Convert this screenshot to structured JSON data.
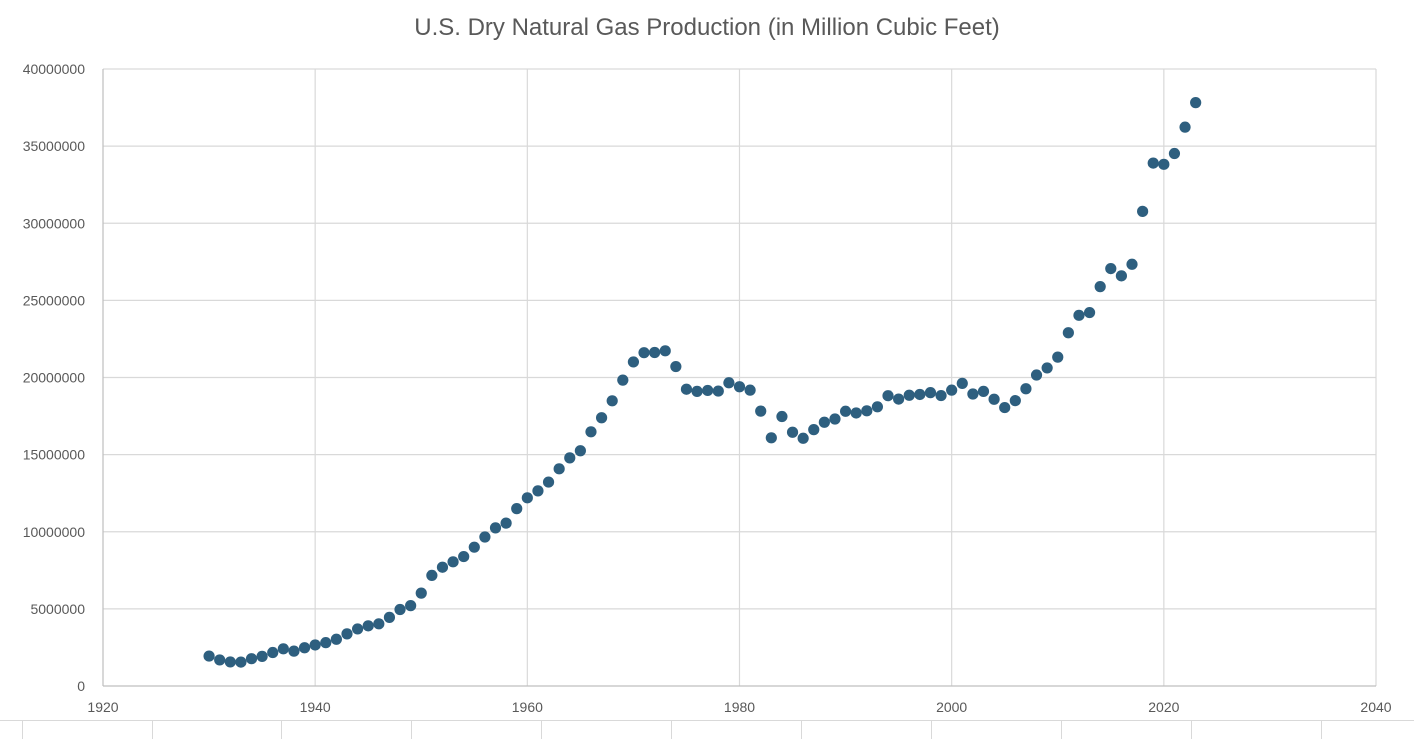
{
  "chart_data": {
    "type": "scatter",
    "title": "U.S. Dry Natural Gas Production (in Million Cubic Feet)",
    "xlabel": "",
    "ylabel": "",
    "xlim": [
      1920,
      2040
    ],
    "ylim": [
      0,
      40000000
    ],
    "x_ticks": [
      1920,
      1940,
      1960,
      1980,
      2000,
      2020,
      2040
    ],
    "y_ticks": [
      0,
      5000000,
      10000000,
      15000000,
      20000000,
      25000000,
      30000000,
      35000000,
      40000000
    ],
    "grid": true,
    "legend": false,
    "series": [
      {
        "color": "#2e5f7f",
        "points": [
          [
            1930,
            1940000
          ],
          [
            1931,
            1690000
          ],
          [
            1932,
            1560000
          ],
          [
            1933,
            1550000
          ],
          [
            1934,
            1770000
          ],
          [
            1935,
            1920000
          ],
          [
            1936,
            2170000
          ],
          [
            1937,
            2410000
          ],
          [
            1938,
            2260000
          ],
          [
            1939,
            2480000
          ],
          [
            1940,
            2660000
          ],
          [
            1941,
            2810000
          ],
          [
            1942,
            3030000
          ],
          [
            1943,
            3380000
          ],
          [
            1944,
            3700000
          ],
          [
            1945,
            3900000
          ],
          [
            1946,
            4030000
          ],
          [
            1947,
            4450000
          ],
          [
            1948,
            4960000
          ],
          [
            1949,
            5210000
          ],
          [
            1950,
            6020000
          ],
          [
            1951,
            7170000
          ],
          [
            1952,
            7700000
          ],
          [
            1953,
            8050000
          ],
          [
            1954,
            8390000
          ],
          [
            1955,
            9000000
          ],
          [
            1956,
            9660000
          ],
          [
            1957,
            10250000
          ],
          [
            1958,
            10560000
          ],
          [
            1959,
            11500000
          ],
          [
            1960,
            12200000
          ],
          [
            1961,
            12650000
          ],
          [
            1962,
            13220000
          ],
          [
            1963,
            14080000
          ],
          [
            1964,
            14790000
          ],
          [
            1965,
            15250000
          ],
          [
            1966,
            16480000
          ],
          [
            1967,
            17390000
          ],
          [
            1968,
            18490000
          ],
          [
            1969,
            19830000
          ],
          [
            1970,
            21010000
          ],
          [
            1971,
            21610000
          ],
          [
            1972,
            21620000
          ],
          [
            1973,
            21730000
          ],
          [
            1974,
            20710000
          ],
          [
            1975,
            19240000
          ],
          [
            1976,
            19100000
          ],
          [
            1977,
            19160000
          ],
          [
            1978,
            19120000
          ],
          [
            1979,
            19660000
          ],
          [
            1980,
            19400000
          ],
          [
            1981,
            19180000
          ],
          [
            1982,
            17820000
          ],
          [
            1983,
            16090000
          ],
          [
            1984,
            17470000
          ],
          [
            1985,
            16450000
          ],
          [
            1986,
            16060000
          ],
          [
            1987,
            16620000
          ],
          [
            1988,
            17100000
          ],
          [
            1989,
            17310000
          ],
          [
            1990,
            17810000
          ],
          [
            1991,
            17700000
          ],
          [
            1992,
            17840000
          ],
          [
            1993,
            18100000
          ],
          [
            1994,
            18820000
          ],
          [
            1995,
            18600000
          ],
          [
            1996,
            18850000
          ],
          [
            1997,
            18900000
          ],
          [
            1998,
            19020000
          ],
          [
            1999,
            18830000
          ],
          [
            2000,
            19180000
          ],
          [
            2001,
            19620000
          ],
          [
            2002,
            18930000
          ],
          [
            2003,
            19100000
          ],
          [
            2004,
            18590000
          ],
          [
            2005,
            18050000
          ],
          [
            2006,
            18500000
          ],
          [
            2007,
            19270000
          ],
          [
            2008,
            20160000
          ],
          [
            2009,
            20620000
          ],
          [
            2010,
            21320000
          ],
          [
            2011,
            22900000
          ],
          [
            2012,
            24030000
          ],
          [
            2013,
            24210000
          ],
          [
            2014,
            25890000
          ],
          [
            2015,
            27060000
          ],
          [
            2016,
            26590000
          ],
          [
            2017,
            27340000
          ],
          [
            2018,
            30770000
          ],
          [
            2019,
            33900000
          ],
          [
            2020,
            33820000
          ],
          [
            2021,
            34520000
          ],
          [
            2022,
            36230000
          ],
          [
            2023,
            37820000
          ]
        ]
      }
    ]
  }
}
